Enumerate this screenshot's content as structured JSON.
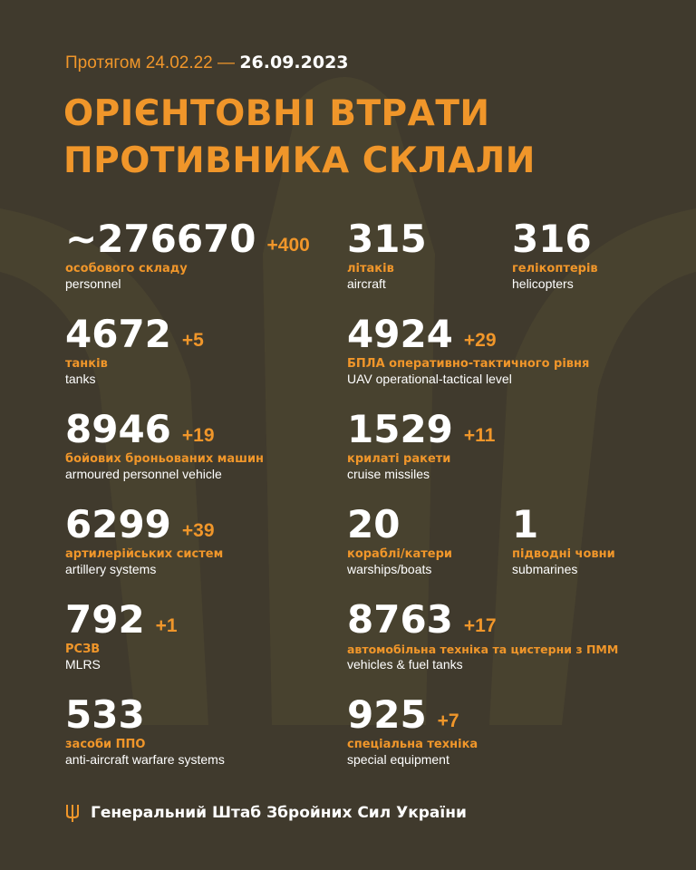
{
  "header": {
    "period_prefix": "Протягом 24.02.22 —",
    "period_date": "26.09.2023",
    "title_line1": "ОРІЄНТОВНІ ВТРАТИ",
    "title_line2": "ПРОТИВНИКА СКЛАЛИ"
  },
  "colors": {
    "background": "#403a2d",
    "accent": "#f0962a",
    "text": "#ffffff"
  },
  "left": [
    {
      "value": "~276670",
      "delta": "+400",
      "ua": "особового складу",
      "en": "personnel"
    },
    {
      "value": "4672",
      "delta": "+5",
      "ua": "танків",
      "en": "tanks"
    },
    {
      "value": "8946",
      "delta": "+19",
      "ua": "бойових броньованих машин",
      "en": "armoured personnel vehicle"
    },
    {
      "value": "6299",
      "delta": "+39",
      "ua": "артилерійських систем",
      "en": "artillery systems"
    },
    {
      "value": "792",
      "delta": "+1",
      "ua": "РСЗВ",
      "en": "MLRS"
    },
    {
      "value": "533",
      "delta": "",
      "ua": "засоби ППО",
      "en": "anti-aircraft warfare systems"
    }
  ],
  "right": [
    {
      "value": "315",
      "delta": "",
      "ua": "літаків",
      "en": "aircraft"
    },
    {
      "value": "316",
      "delta": "",
      "ua": "гелікоптерів",
      "en": "helicopters"
    },
    {
      "value": "4924",
      "delta": "+29",
      "ua": "БПЛА оперативно-тактичного рівня",
      "en": "UAV operational-tactical level"
    },
    {
      "value": "1529",
      "delta": "+11",
      "ua": "крилаті ракети",
      "en": "cruise missiles"
    },
    {
      "value": "20",
      "delta": "",
      "ua": "кораблі/катери",
      "en": "warships/boats"
    },
    {
      "value": "1",
      "delta": "",
      "ua": "підводні човни",
      "en": "submarines"
    },
    {
      "value": "8763",
      "delta": "+17",
      "ua": "автомобільна техніка та цистерни з ПММ",
      "en": "vehicles & fuel tanks"
    },
    {
      "value": "925",
      "delta": "+7",
      "ua": "спеціальна техніка",
      "en": "special equipment"
    }
  ],
  "footer": {
    "icon": "trident-icon",
    "text": "Генеральний Штаб Збройних Сил України"
  }
}
